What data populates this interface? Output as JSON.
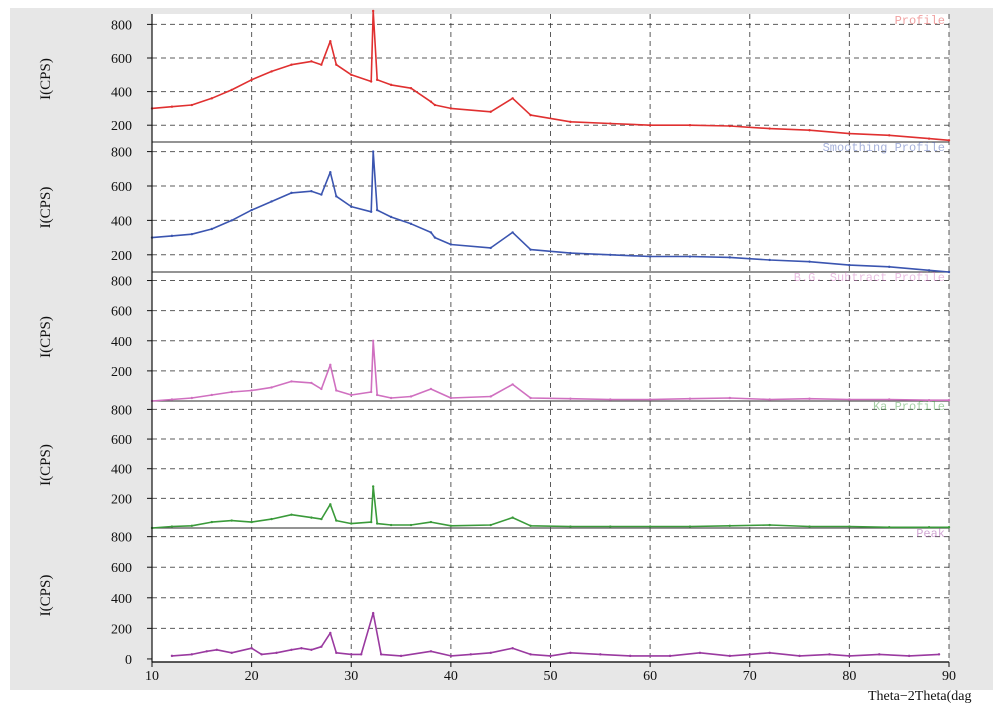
{
  "chart_data": {
    "type": "line",
    "xlabel": "Theta−2Theta(dag",
    "xlim": [
      10,
      90
    ],
    "x_ticks": [
      10,
      20,
      30,
      40,
      50,
      60,
      70,
      80,
      90
    ],
    "grid": true,
    "panels": [
      {
        "ylabel": "I(CPS)",
        "ylim": [
          100,
          850
        ],
        "y_ticks": [
          200,
          400,
          600,
          800
        ],
        "legend": "Profile",
        "color": "#e03030",
        "series": [
          {
            "x": [
              10,
              12,
              14,
              16,
              18,
              20,
              22,
              24,
              26,
              27,
              27.9,
              28.5,
              30,
              32,
              32.2,
              32.6,
              34,
              36,
              38,
              38.4,
              40,
              44,
              46.2,
              48,
              52,
              56,
              60,
              64,
              68,
              72,
              76,
              80,
              84,
              88,
              90
            ],
            "y": [
              300,
              310,
              320,
              360,
              410,
              470,
              520,
              560,
              580,
              560,
              700,
              560,
              500,
              460,
              880,
              470,
              440,
              420,
              340,
              320,
              300,
              280,
              360,
              260,
              220,
              210,
              200,
              200,
              195,
              180,
              170,
              150,
              140,
              120,
              110
            ]
          }
        ]
      },
      {
        "ylabel": "I(CPS)",
        "ylim": [
          100,
          850
        ],
        "y_ticks": [
          200,
          400,
          600,
          800
        ],
        "legend": "Smoothing Profile",
        "color": "#3b55b0",
        "series": [
          {
            "x": [
              10,
              12,
              14,
              16,
              18,
              20,
              22,
              24,
              26,
              27,
              27.9,
              28.5,
              30,
              32,
              32.2,
              32.6,
              34,
              36,
              38,
              38.4,
              40,
              44,
              46.2,
              48,
              52,
              56,
              60,
              64,
              68,
              72,
              76,
              80,
              84,
              88,
              90
            ],
            "y": [
              300,
              310,
              320,
              350,
              400,
              460,
              510,
              560,
              570,
              550,
              680,
              540,
              480,
              450,
              800,
              460,
              420,
              380,
              330,
              300,
              260,
              240,
              330,
              230,
              210,
              200,
              190,
              190,
              185,
              170,
              160,
              140,
              130,
              110,
              100
            ]
          }
        ]
      },
      {
        "ylabel": "I(CPS)",
        "ylim": [
          0,
          850
        ],
        "y_ticks": [
          200,
          400,
          600,
          800
        ],
        "legend": "B.G. Subtract Profile",
        "color": "#d070c0",
        "series": [
          {
            "x": [
              10,
              12,
              14,
              16,
              18,
              20,
              22,
              24,
              26,
              27,
              27.9,
              28.5,
              30,
              32,
              32.2,
              32.6,
              34,
              36,
              38,
              40,
              44,
              46.2,
              48,
              52,
              56,
              60,
              64,
              68,
              72,
              76,
              80,
              84,
              88,
              90
            ],
            "y": [
              0,
              10,
              20,
              40,
              60,
              70,
              90,
              130,
              120,
              80,
              240,
              70,
              40,
              60,
              400,
              40,
              20,
              30,
              80,
              20,
              30,
              110,
              20,
              15,
              10,
              10,
              15,
              20,
              10,
              15,
              10,
              10,
              5,
              5
            ]
          }
        ]
      },
      {
        "ylabel": "I(CPS)",
        "ylim": [
          0,
          850
        ],
        "y_ticks": [
          200,
          400,
          600,
          800
        ],
        "legend": "Ka Profile",
        "color": "#3a9a3a",
        "series": [
          {
            "x": [
              10,
              12,
              14,
              16,
              18,
              20,
              22,
              24,
              26,
              27,
              27.9,
              28.5,
              30,
              32,
              32.2,
              32.6,
              34,
              36,
              38,
              40,
              44,
              46.2,
              48,
              52,
              56,
              60,
              64,
              68,
              72,
              76,
              80,
              84,
              88,
              90
            ],
            "y": [
              0,
              10,
              15,
              40,
              50,
              40,
              60,
              90,
              70,
              60,
              160,
              50,
              30,
              40,
              280,
              30,
              20,
              20,
              40,
              15,
              20,
              70,
              15,
              10,
              10,
              10,
              10,
              15,
              20,
              10,
              10,
              5,
              5,
              5
            ]
          }
        ]
      },
      {
        "ylabel": "I(CPS)",
        "ylim": [
          -20,
          850
        ],
        "y_ticks": [
          0,
          200,
          400,
          600,
          800
        ],
        "legend": "Peak",
        "color": "#9a3aa0",
        "series": [
          {
            "x": [
              12,
              14,
              15.5,
              16.5,
              18,
              20,
              21,
              22.5,
              24,
              25,
              26,
              27,
              27.9,
              28.5,
              30,
              31,
              32.2,
              33,
              35,
              38,
              40,
              42,
              44,
              46.2,
              48,
              50,
              52,
              55,
              58,
              62,
              65,
              68,
              70,
              72,
              75,
              78,
              80,
              83,
              86,
              89
            ],
            "y": [
              20,
              30,
              50,
              60,
              40,
              70,
              30,
              40,
              60,
              70,
              60,
              80,
              170,
              40,
              30,
              30,
              300,
              30,
              20,
              50,
              20,
              30,
              40,
              70,
              30,
              20,
              40,
              30,
              20,
              20,
              40,
              20,
              30,
              40,
              20,
              30,
              20,
              30,
              20,
              30
            ]
          }
        ]
      }
    ]
  }
}
